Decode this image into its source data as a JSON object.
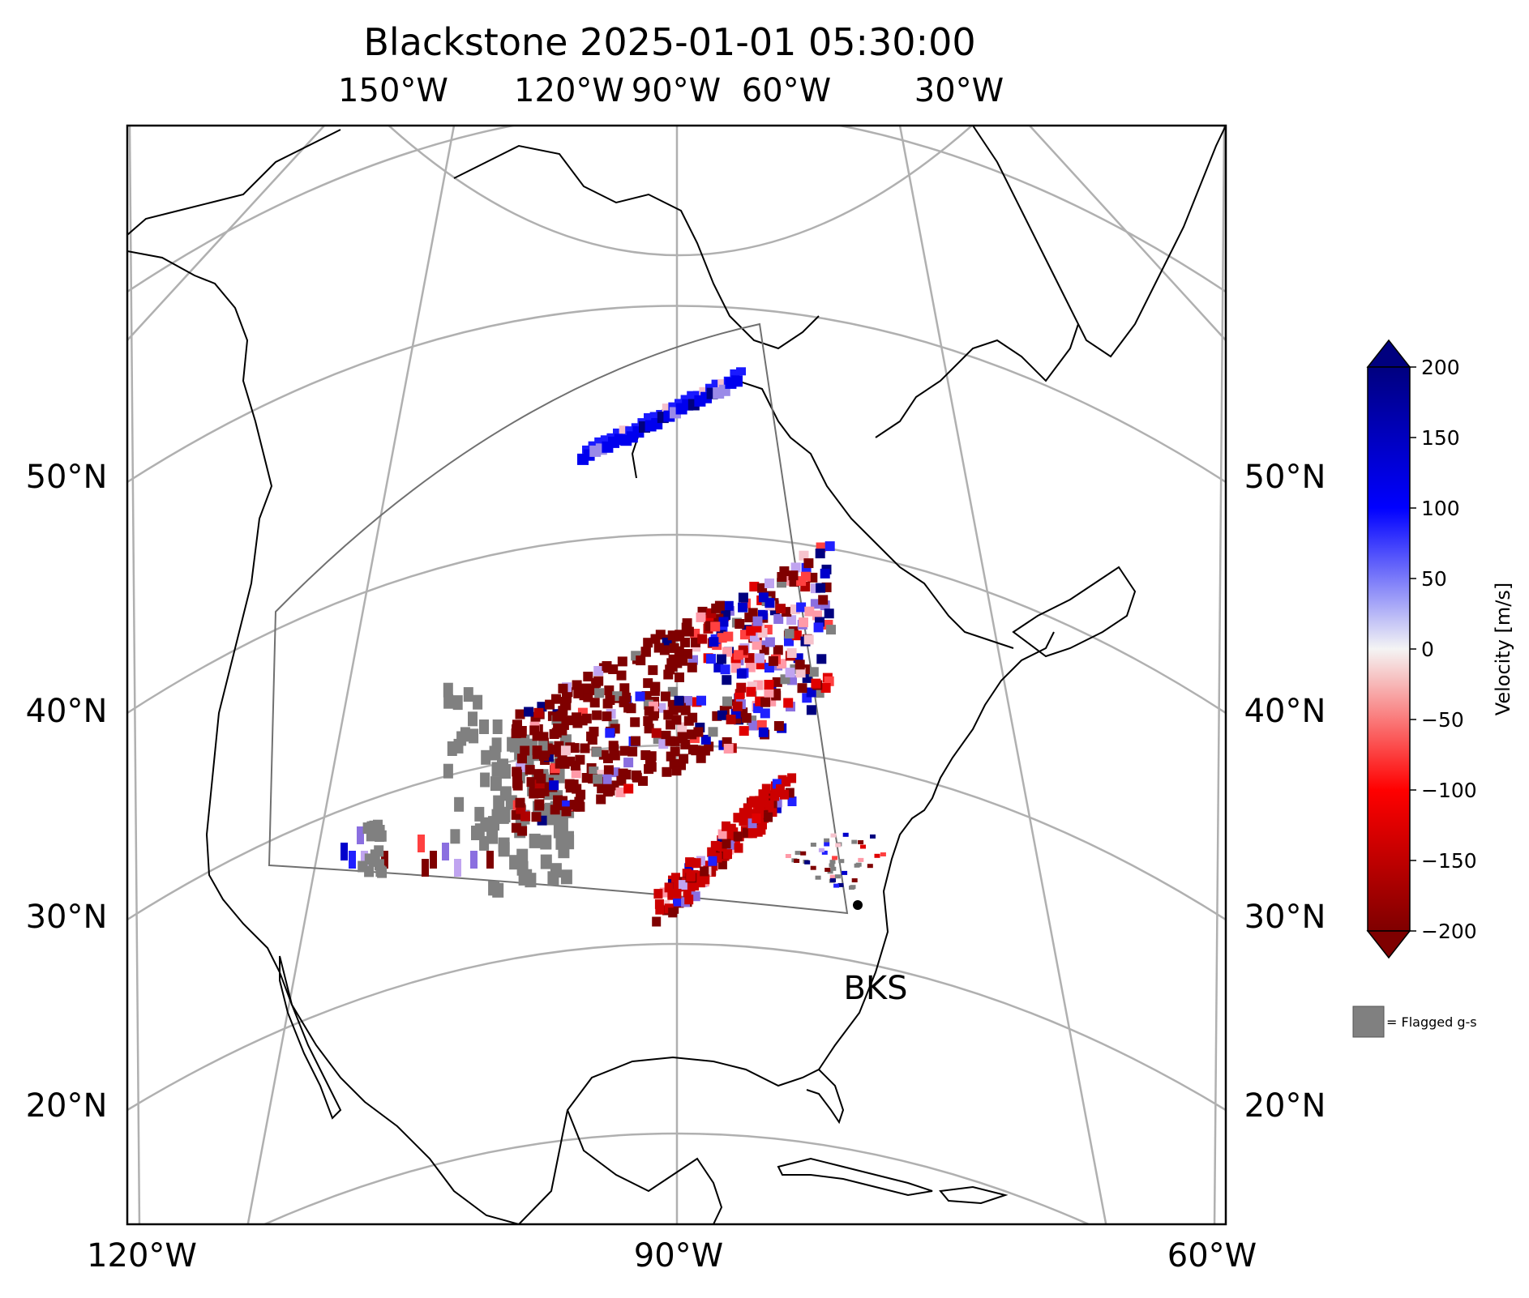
{
  "title": "Blackstone 2025-01-01 05:30:00",
  "top_lon_labels": [
    "150°W",
    "120°W",
    "90°W",
    "60°W",
    "30°W"
  ],
  "bottom_lon_labels": [
    "120°W",
    "90°W",
    "60°W"
  ],
  "left_lat_labels": [
    "50°N",
    "40°N",
    "30°N",
    "20°N"
  ],
  "right_lat_labels": [
    "50°N",
    "40°N",
    "30°N",
    "20°N"
  ],
  "station_label": "BKS",
  "colorbar": {
    "label": "Velocity [m/s]",
    "ticks": [
      "200",
      "150",
      "100",
      "50",
      "0",
      "−50",
      "−100",
      "−150",
      "−200"
    ],
    "colors": {
      "top": "#00007f",
      "upper": "#0000ff",
      "mid": "#f4f4f4",
      "lower": "#ff0000",
      "bottom": "#7f0000"
    }
  },
  "flagged_legend": {
    "label": "= Flagged g-s",
    "color": "#808080"
  },
  "colors": {
    "gridline": "#b0b0b0",
    "coast": "#000000",
    "fov": "#707070",
    "flagged": "#808080"
  }
}
